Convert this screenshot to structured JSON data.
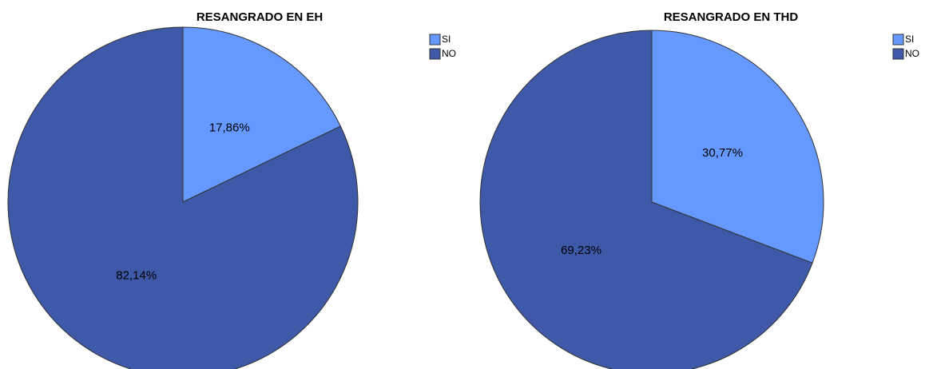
{
  "chart_data": [
    {
      "type": "pie",
      "title": "RESANGRADO EN EH",
      "categories": [
        "SI",
        "NO"
      ],
      "values": [
        17.86,
        82.14
      ],
      "value_labels": [
        "17,86%",
        "82,14%"
      ],
      "colors": [
        "#6699ff",
        "#3d59a8"
      ]
    },
    {
      "type": "pie",
      "title": "RESANGRADO EN THD",
      "categories": [
        "SI",
        "NO"
      ],
      "values": [
        30.77,
        69.23
      ],
      "value_labels": [
        "30,77%",
        "69,23%"
      ],
      "colors": [
        "#6699ff",
        "#3d59a8"
      ]
    }
  ]
}
